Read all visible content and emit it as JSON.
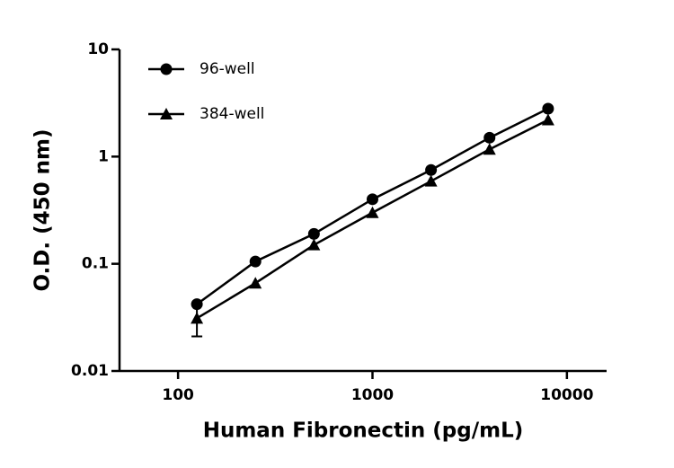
{
  "chart_data": {
    "type": "line",
    "x_label": "Human Fibronectin (pg/mL)",
    "y_label": "O.D. (450 nm)",
    "x": [
      125,
      250,
      500,
      1000,
      2000,
      4000,
      8000
    ],
    "series": [
      {
        "name": "96-well",
        "color": "#000000",
        "marker": "circle",
        "values": [
          0.042,
          0.105,
          0.19,
          0.4,
          0.75,
          1.5,
          2.8
        ]
      },
      {
        "name": "384-well",
        "color": "#000000",
        "marker": "triangle",
        "values": [
          0.031,
          0.066,
          0.15,
          0.3,
          0.59,
          1.17,
          2.2
        ],
        "errors": [
          0.01,
          null,
          null,
          null,
          null,
          null,
          null
        ]
      }
    ],
    "xscale": "log",
    "yscale": "log",
    "xlim": [
      50,
      16000
    ],
    "ylim": [
      0.01,
      10
    ],
    "xticks": [
      100,
      1000,
      10000
    ],
    "yticks": [
      0.01,
      0.1,
      1,
      10
    ],
    "legend": "upper left"
  }
}
